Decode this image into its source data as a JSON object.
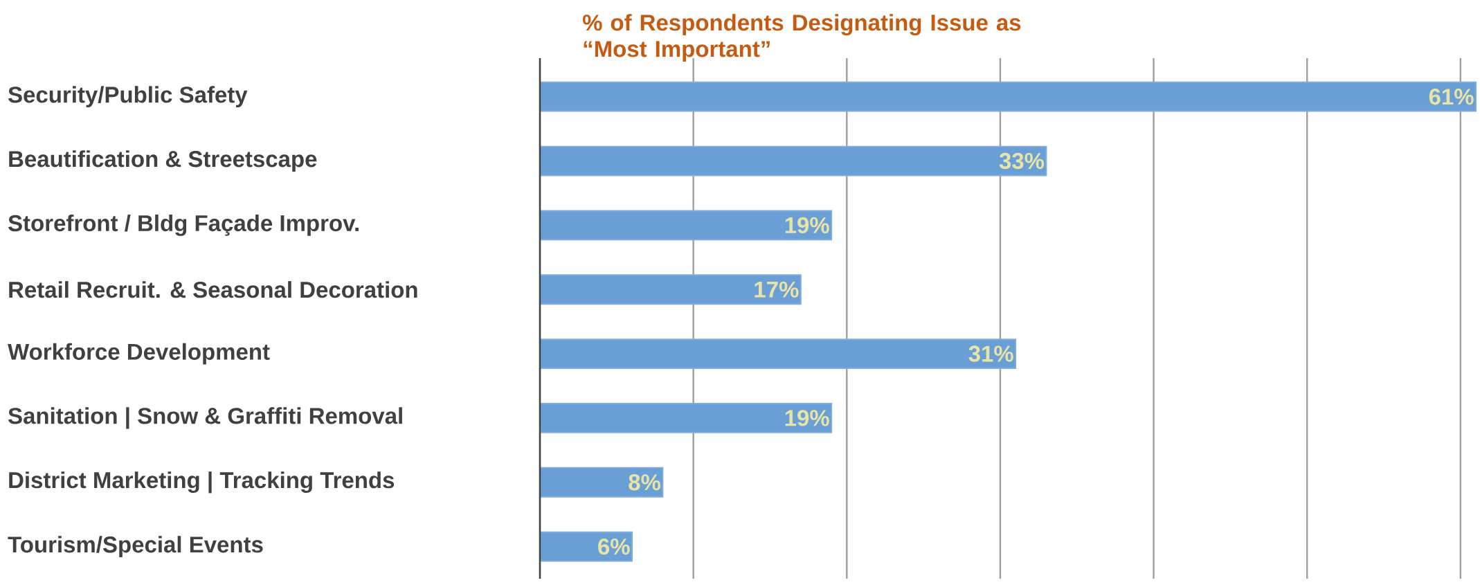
{
  "chart_data": {
    "type": "bar",
    "orientation": "horizontal",
    "title": "% of Respondents Designating Issue as “Most Important”",
    "categories": [
      "Security/Public Safety",
      "Beautification & Streetscape",
      "Storefront / Bldg Façade Improv.",
      "Retail Recruit. & Seasonal Decoration",
      "Workforce Development",
      "Sanitation | Snow & Graffiti Removal",
      "District Marketing | Tracking Trends",
      "Tourism/Special Events"
    ],
    "values": [
      61,
      33,
      19,
      17,
      31,
      19,
      8,
      6
    ],
    "value_labels": [
      "61%",
      "33%",
      "19%",
      "17%",
      "31%",
      "19%",
      "8%",
      "6%"
    ],
    "color": "#6a9fd6",
    "xlim": [
      0,
      61
    ],
    "xticks": [
      {
        "value": 0,
        "label": null
      },
      {
        "value": 10,
        "label": null
      },
      {
        "value": 20,
        "label": null
      },
      {
        "value": 30,
        "label": null
      },
      {
        "value": 40,
        "label": null
      },
      {
        "value": 50,
        "label": null
      },
      {
        "value": 60,
        "label": null
      }
    ],
    "grid": "x",
    "tick_labels": "y"
  }
}
